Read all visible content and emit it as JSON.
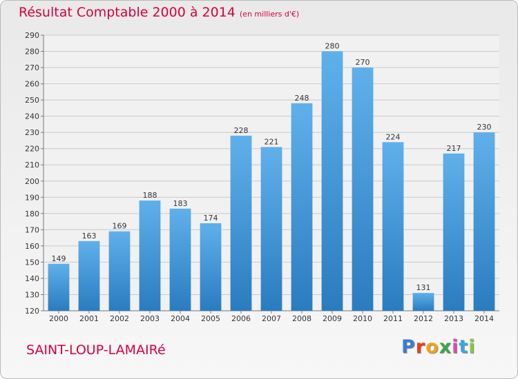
{
  "title": "Résultat Comptable 2000 à 2014",
  "subtitle": "(en milliers d'€)",
  "city": "SAINT-LOUP-LAMAIRé",
  "logo": {
    "text": "Proxiti",
    "colors": [
      "#3a7fd0",
      "#e8401e",
      "#f2a21a",
      "#3aa64a",
      "#d94bb0",
      "#37a8e0",
      "#8bc540"
    ]
  },
  "colors": {
    "title": "#d6003c",
    "bar_light": "#5fb0ea",
    "bar_dark": "#2a7cc0",
    "grid": "#c9c9c9"
  },
  "chart_data": {
    "type": "bar",
    "categories": [
      "2000",
      "2001",
      "2002",
      "2003",
      "2004",
      "2005",
      "2006",
      "2007",
      "2008",
      "2009",
      "2010",
      "2011",
      "2012",
      "2013",
      "2014"
    ],
    "values": [
      149,
      163,
      169,
      188,
      183,
      174,
      228,
      221,
      248,
      280,
      270,
      224,
      131,
      217,
      230
    ],
    "ylim": [
      120,
      290
    ],
    "yticks": [
      120,
      130,
      140,
      150,
      160,
      170,
      180,
      190,
      200,
      210,
      220,
      230,
      240,
      250,
      260,
      270,
      280,
      290
    ],
    "grid": true
  }
}
